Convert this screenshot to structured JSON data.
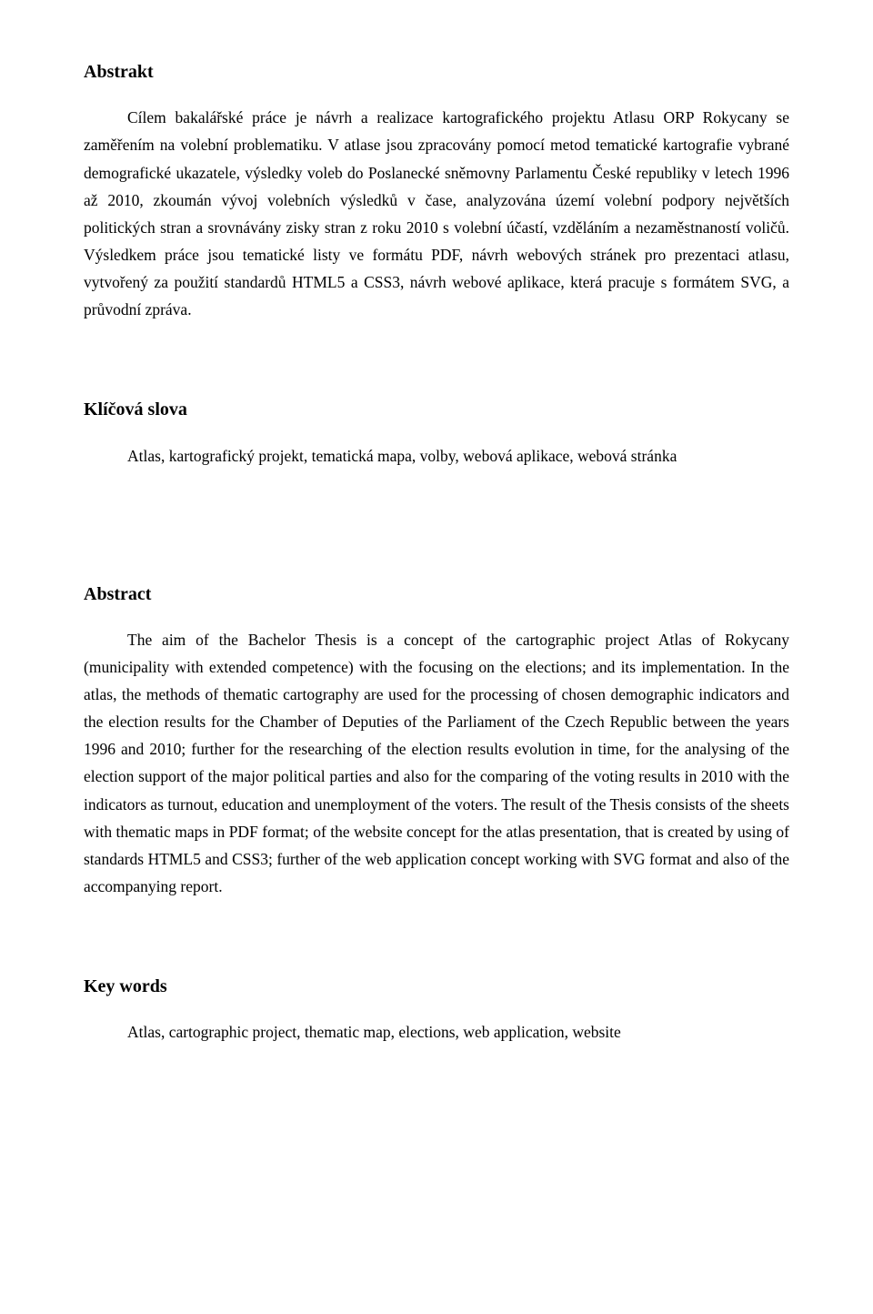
{
  "section1": {
    "title": "Abstrakt",
    "body": "Cílem bakalářské práce je návrh a realizace kartografického projektu Atlasu ORP Rokycany se zaměřením na volební problematiku. V atlase jsou zpracovány pomocí metod tematické kartografie vybrané demografické ukazatele, výsledky voleb do Poslanecké sněmovny Parlamentu České republiky v letech 1996 až 2010, zkoumán vývoj volebních výsledků v čase, analyzována území volební podpory největších politických stran a srovnávány zisky stran z roku 2010 s volební účastí, vzděláním a nezaměstnaností voličů. Výsledkem práce jsou tematické listy ve formátu PDF, návrh webových stránek pro prezentaci atlasu, vytvořený za použití standardů HTML5 a CSS3, návrh webové aplikace, která pracuje s formátem SVG, a průvodní zpráva."
  },
  "section2": {
    "title": "Klíčová slova",
    "body": "Atlas, kartografický projekt, tematická mapa, volby, webová aplikace, webová stránka"
  },
  "section3": {
    "title": "Abstract",
    "body": "The aim of the Bachelor Thesis is a concept of the cartographic project Atlas of Rokycany (municipality with extended competence) with the focusing on the elections; and its implementation. In the atlas, the methods of thematic cartography are used for the processing of chosen demographic indicators and the election results for the Chamber of Deputies of the Parliament of the Czech Republic between the years 1996 and 2010; further for the researching of the election results evolution in time, for the analysing of the election support of the major political parties and also for the comparing of the voting results in 2010 with the indicators as turnout, education and unemployment of the voters. The result of the Thesis consists of the sheets with thematic maps in PDF format; of the website concept for the atlas presentation, that is created by using of standards HTML5 and CSS3; further of the web application concept working with SVG format and also of the accompanying report."
  },
  "section4": {
    "title": "Key words",
    "body": "Atlas, cartographic project, thematic map, elections, web application, website"
  }
}
